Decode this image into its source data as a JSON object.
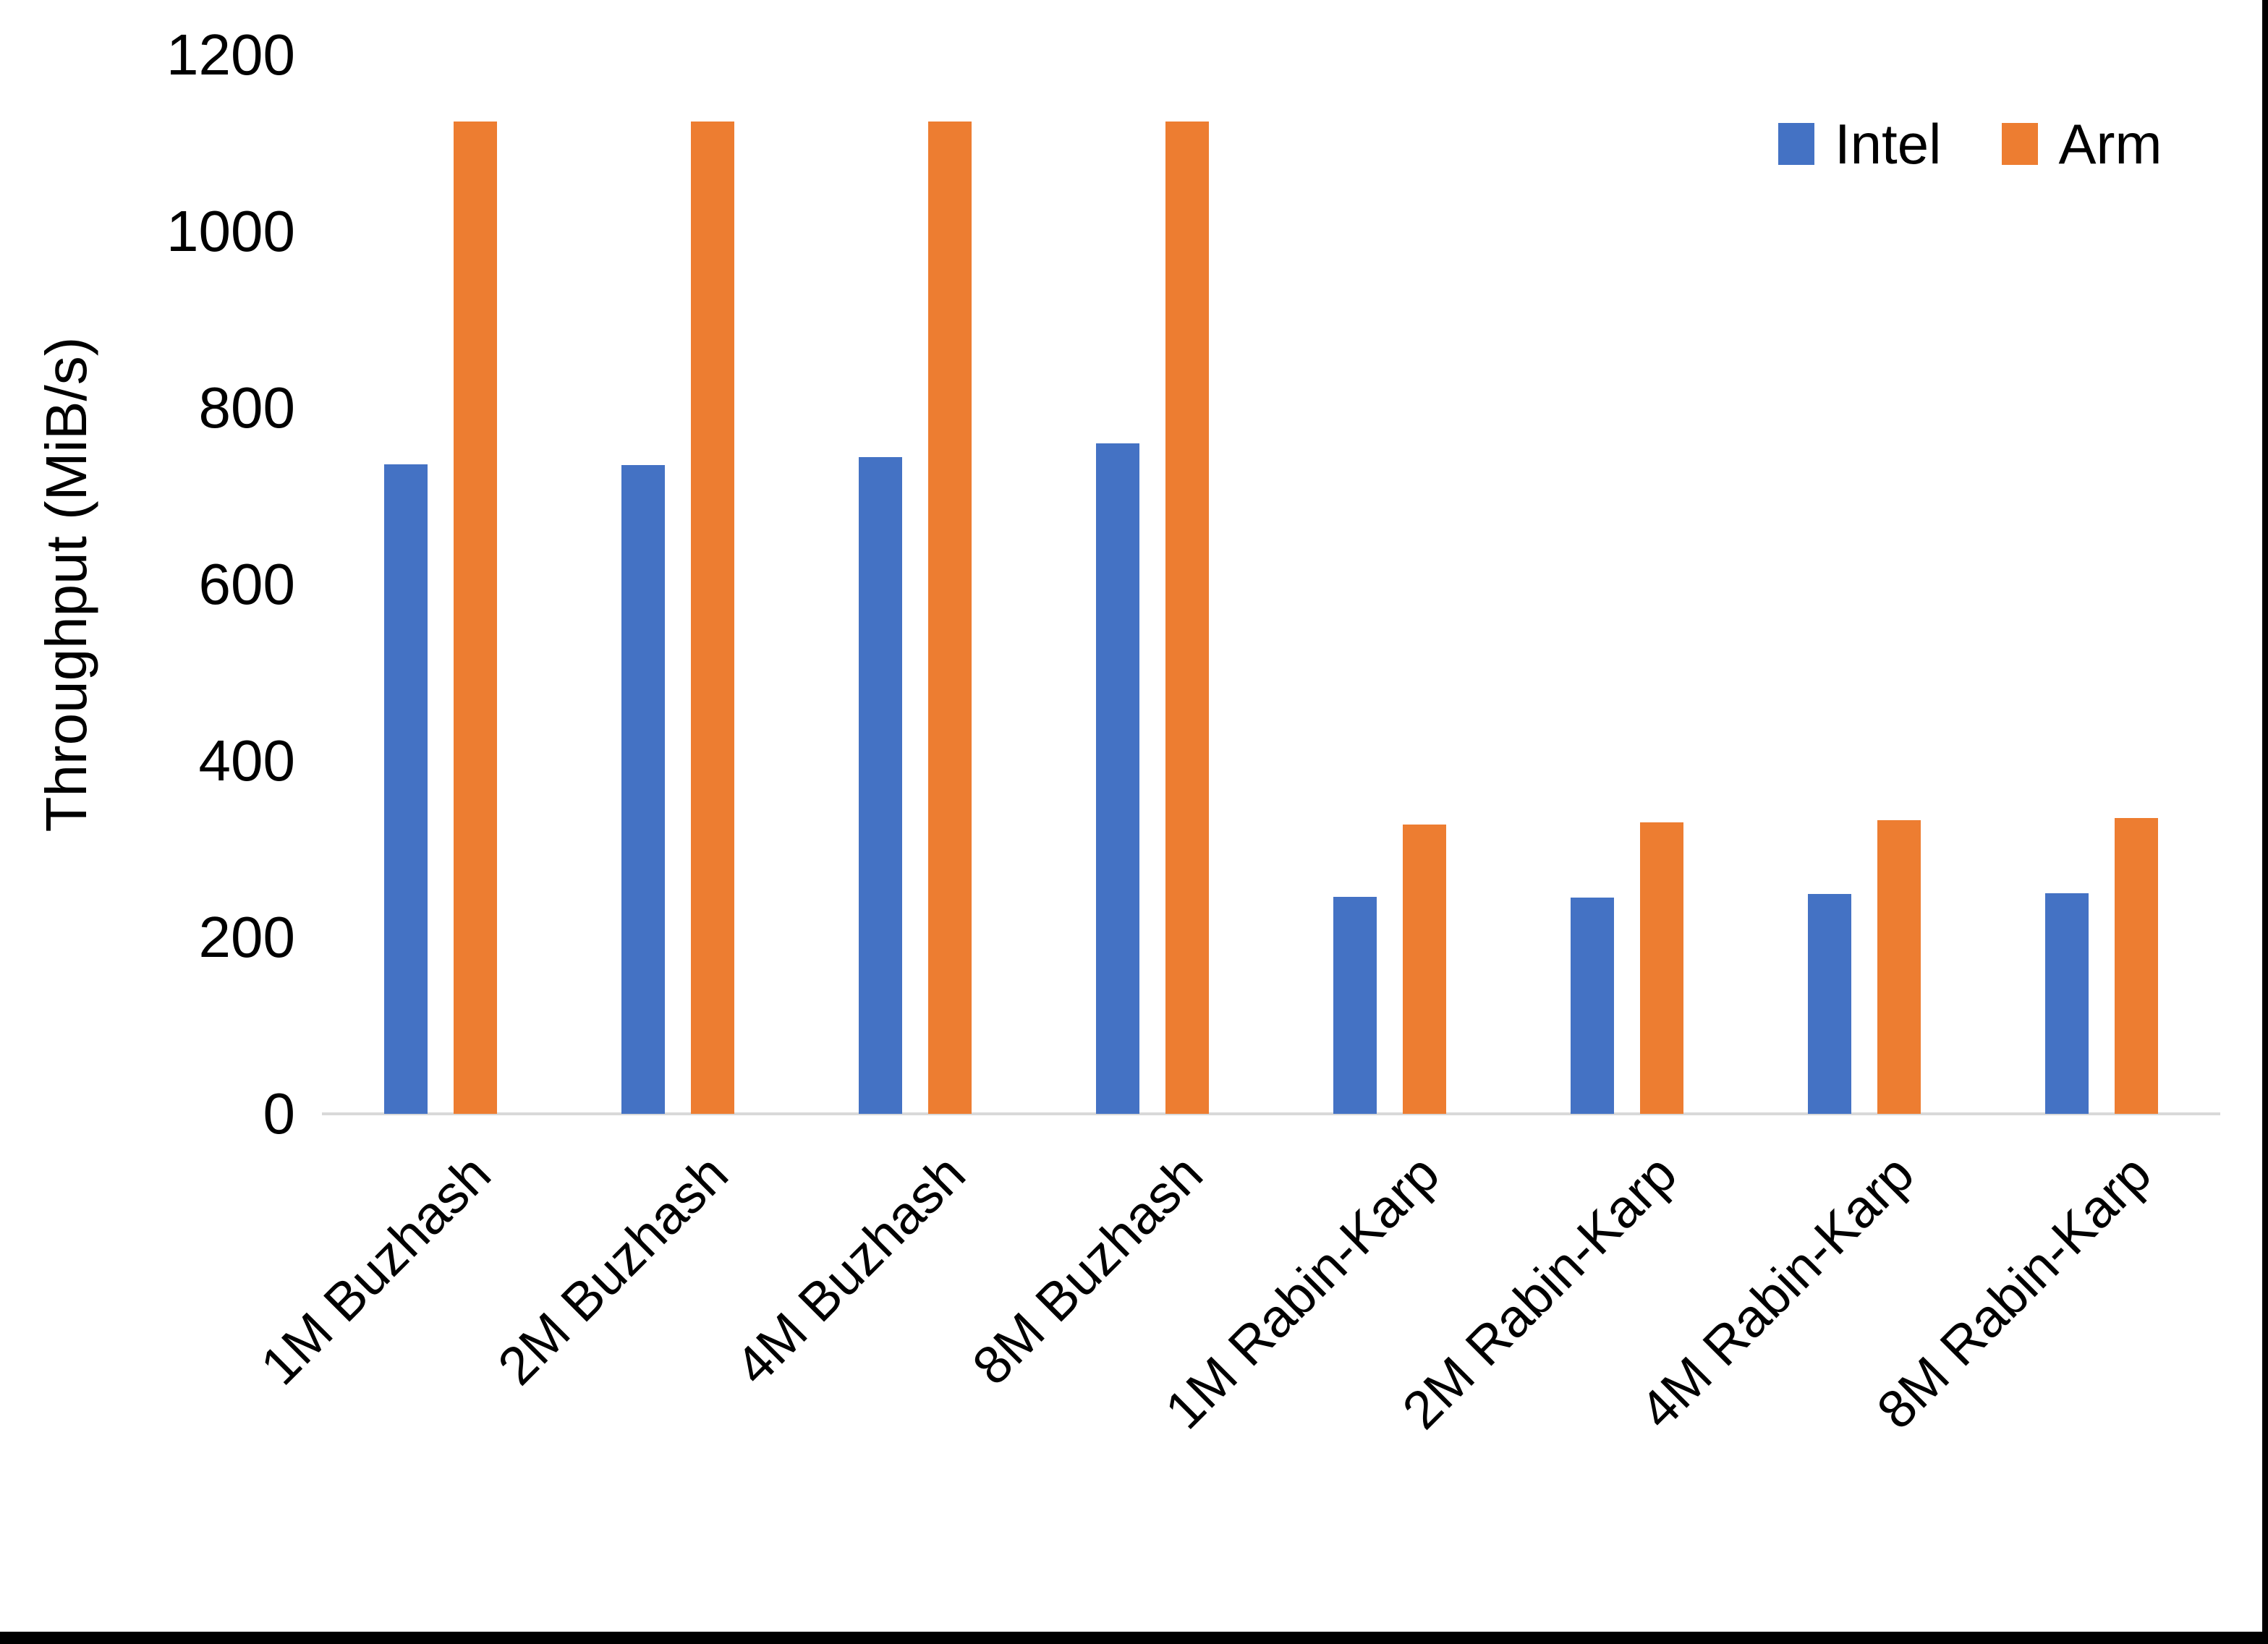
{
  "chart_data": {
    "type": "bar",
    "title": "",
    "ylabel": "Throughput (MiB/s)",
    "ylim": [
      0,
      1200
    ],
    "yticks": [
      0,
      200,
      400,
      600,
      800,
      1000,
      1200
    ],
    "grid": false,
    "axis_line_color": "#D9D9D9",
    "legend_position": "top-right",
    "categories": [
      "1M Buzhash",
      "2M Buzhash",
      "4M Buzhash",
      "8M Buzhash",
      "1M Rabin-Karp",
      "2M Rabin-Karp",
      "4M Rabin-Karp",
      "8M Rabin-Karp"
    ],
    "series": [
      {
        "name": "Intel",
        "color": "#4472C4",
        "values": [
          736,
          735,
          744,
          760,
          246,
          245,
          249,
          250
        ]
      },
      {
        "name": "Arm",
        "color": "#ED7D31",
        "values": [
          1125,
          1125,
          1125,
          1125,
          328,
          330,
          333,
          335
        ]
      }
    ]
  }
}
